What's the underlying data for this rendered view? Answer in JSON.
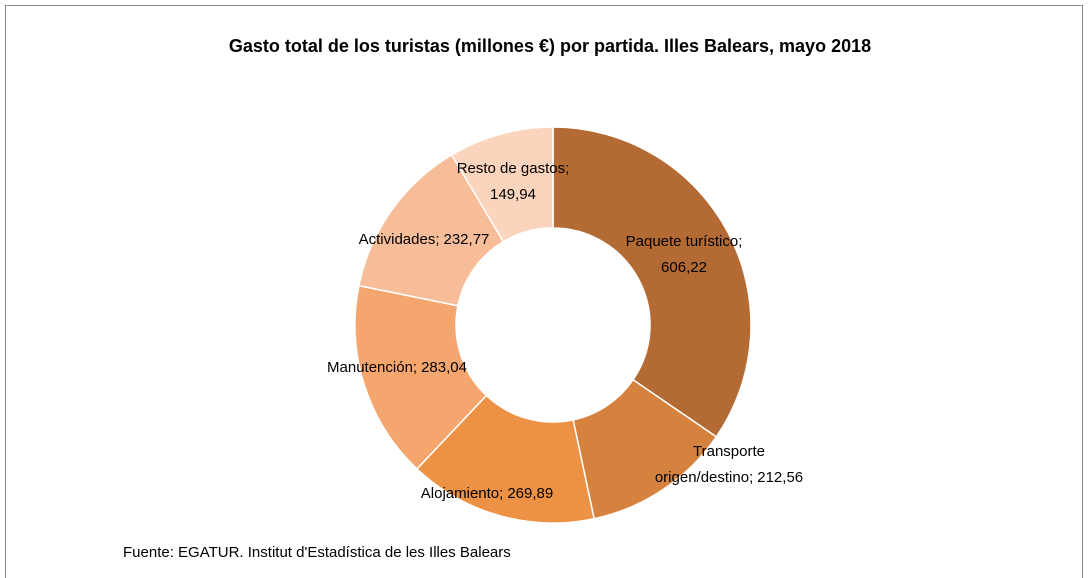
{
  "chart_data": {
    "type": "donut",
    "title": "Gasto total  de los turistas (millones €) por partida.  Illes Balears, mayo 2018",
    "categories": [
      "Paquete turístico",
      "Transporte origen/destino",
      "Alojamiento",
      "Manutención",
      "Actividades",
      "Resto de gastos"
    ],
    "values": [
      606.22,
      212.56,
      269.89,
      283.04,
      232.77,
      149.94
    ],
    "value_labels": [
      "606,22",
      "212,56",
      "269,89",
      "283,04",
      "232,77",
      "149,94"
    ],
    "label_separator": ";",
    "colors": [
      "#b46b33",
      "#d4823d",
      "#ed9244",
      "#f5a66e",
      "#f7bd98",
      "#fad4bc"
    ],
    "source": "Fuente: EGATUR. Institut d'Estadística de les Illes Balears"
  }
}
